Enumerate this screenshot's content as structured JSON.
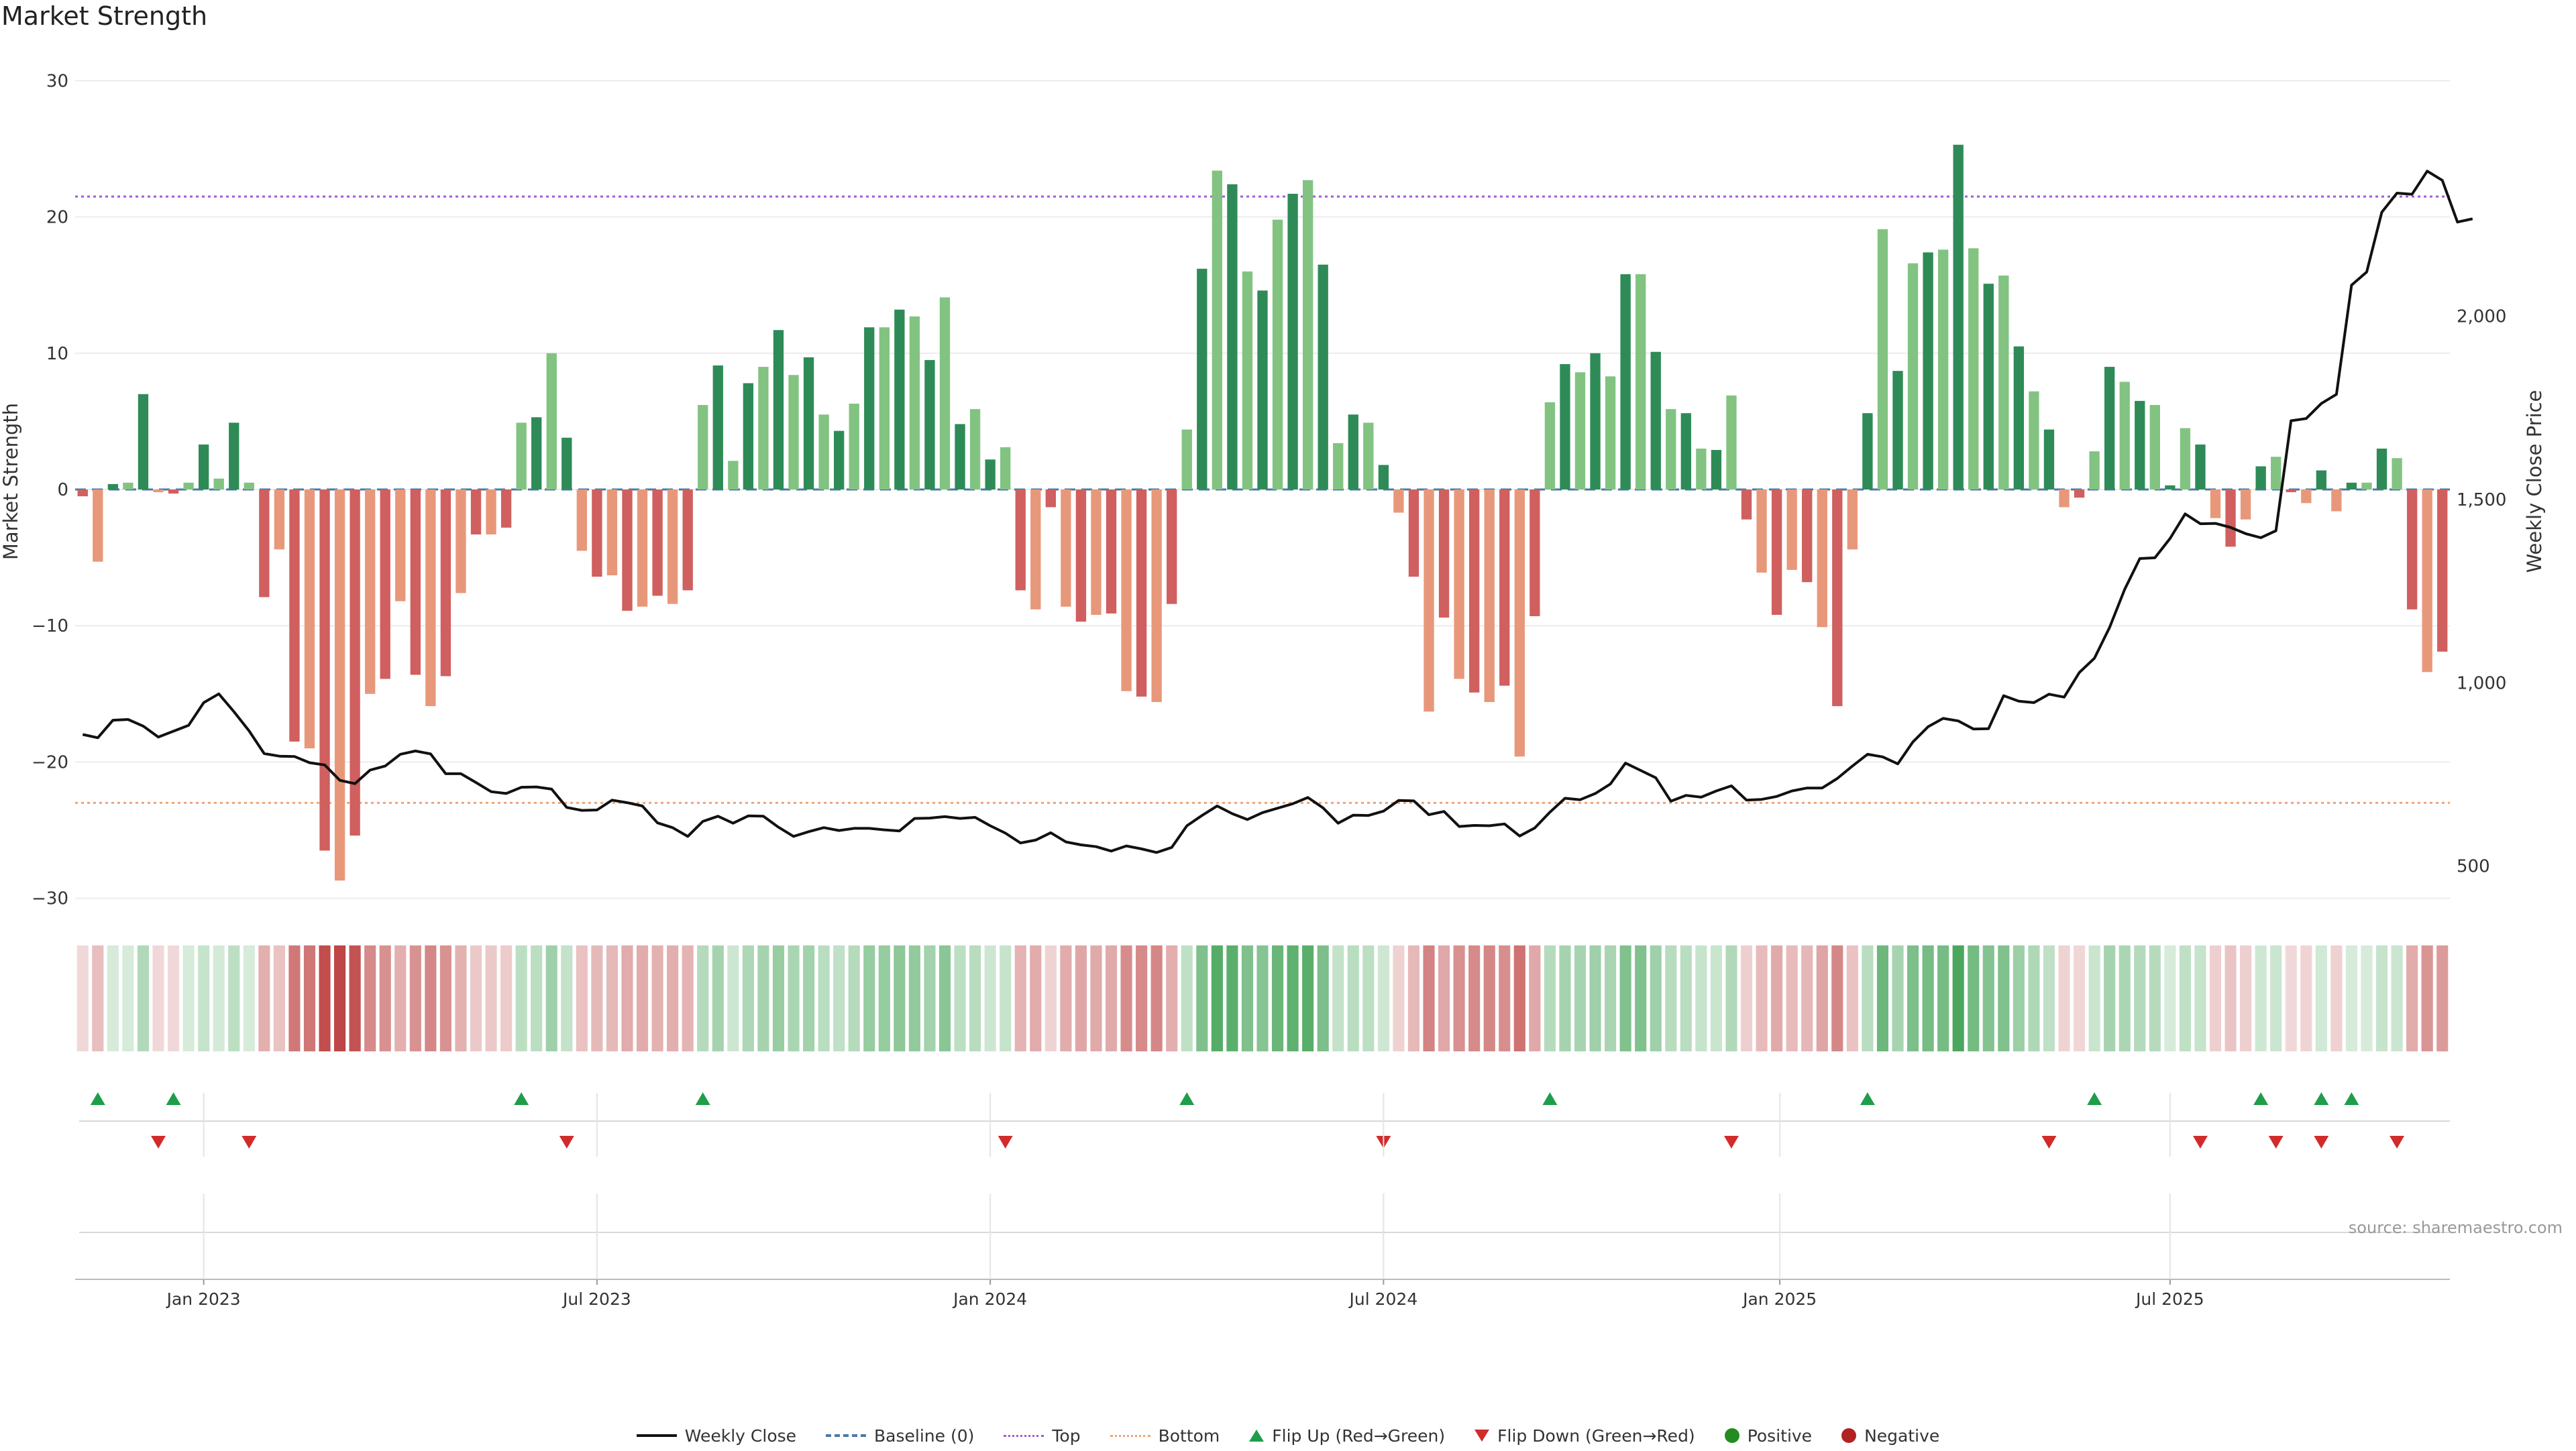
{
  "chart_data": {
    "type": "bar",
    "title": "Market Strength",
    "source": "source: sharemaestro.com",
    "ylabel_left": "Market Strength",
    "ylabel_right": "Weekly Close Price",
    "ylim_left": [
      -31,
      31
    ],
    "left_ticks": [
      "30",
      "20",
      "10",
      "0",
      "−10",
      "−20",
      "−30"
    ],
    "left_tick_values": [
      30,
      20,
      10,
      0,
      -10,
      -20,
      -30
    ],
    "ylim_right": [
      375,
      2680
    ],
    "right_ticks": [
      "2,000",
      "1,500",
      "1,000",
      "500"
    ],
    "right_tick_values": [
      2000,
      1500,
      1000,
      500
    ],
    "x_ticks": [
      "Jan 2023",
      "Jul 2023",
      "Jan 2024",
      "Jul 2024",
      "Jan 2025",
      "Jul 2025"
    ],
    "x_tick_weeks": [
      8.5,
      34.5,
      60.5,
      86.5,
      112.7,
      138.5
    ],
    "reference_lines": {
      "top": 21.5,
      "bottom": -23,
      "baseline": 0
    },
    "strength": [
      -0.5,
      -5.3,
      0.4,
      0.5,
      7,
      -0.2,
      -0.3,
      0.5,
      3.3,
      0.8,
      4.9,
      0.5,
      -7.9,
      -4.4,
      -18.5,
      -19,
      -26.5,
      -28.7,
      -25.4,
      -15,
      -13.9,
      -8.2,
      -13.6,
      -15.9,
      -13.7,
      -7.6,
      -3.3,
      -3.3,
      -2.8,
      4.9,
      5.3,
      10,
      3.8,
      -4.5,
      -6.4,
      -6.3,
      -8.9,
      -8.6,
      -7.8,
      -8.4,
      -7.4,
      6.2,
      9.1,
      2.1,
      7.8,
      9,
      11.7,
      8.4,
      9.7,
      5.5,
      4.3,
      6.3,
      11.9,
      11.9,
      13.2,
      12.7,
      9.5,
      14.1,
      4.8,
      5.9,
      2.2,
      3.1,
      -7.4,
      -8.8,
      -1.3,
      -8.6,
      -9.7,
      -9.2,
      -9.1,
      -14.8,
      -15.2,
      -15.6,
      -8.4,
      4.4,
      16.2,
      23.4,
      22.4,
      16,
      14.6,
      19.8,
      21.7,
      22.7,
      16.5,
      3.4,
      5.5,
      4.9,
      1.8,
      -1.7,
      -6.4,
      -16.3,
      -9.4,
      -13.9,
      -14.9,
      -15.6,
      -14.4,
      -19.6,
      -9.3,
      6.4,
      9.2,
      8.6,
      10,
      8.3,
      15.8,
      15.8,
      10.1,
      5.9,
      5.6,
      3,
      2.9,
      6.9,
      -2.2,
      -6.1,
      -9.2,
      -5.9,
      -6.8,
      -10.1,
      -15.9,
      -4.4,
      5.6,
      19.1,
      8.7,
      16.6,
      17.4,
      17.6,
      25.3,
      17.7,
      15.1,
      15.7,
      10.5,
      7.2,
      4.4,
      -1.3,
      -0.6,
      2.8,
      9,
      7.9,
      6.5,
      6.2,
      0.3,
      4.5,
      3.3,
      -2.1,
      -4.2,
      -2.2,
      1.7,
      2.4,
      -0.2,
      -1,
      1.4,
      -1.6,
      0.5,
      0.5,
      3,
      2.3,
      -8.8,
      -13.4,
      -11.9
    ],
    "weekly_close": [
      859,
      850,
      898,
      900,
      882,
      852,
      868,
      884,
      946,
      970,
      921,
      869,
      807,
      800,
      799,
      782,
      776,
      734,
      725,
      762,
      773,
      805,
      814,
      806,
      752,
      752,
      728,
      703,
      698,
      715,
      716,
      710,
      660,
      652,
      653,
      680,
      673,
      664,
      618,
      605,
      581,
      622,
      636,
      617,
      637,
      636,
      606,
      581,
      594,
      605,
      597,
      603,
      603,
      599,
      596,
      630,
      631,
      635,
      630,
      633,
      610,
      590,
      563,
      571,
      591,
      566,
      558,
      553,
      541,
      555,
      547,
      537,
      551,
      610,
      638,
      664,
      643,
      627,
      646,
      658,
      670,
      687,
      659,
      617,
      639,
      638,
      650,
      679,
      678,
      640,
      649,
      608,
      611,
      610,
      615,
      582,
      604,
      647,
      685,
      681,
      698,
      724,
      781,
      761,
      741,
      677,
      693,
      688,
      705,
      719,
      680,
      682,
      690,
      705,
      713,
      713,
      739,
      773,
      805,
      798,
      779,
      839,
      880,
      903,
      896,
      874,
      875,
      965,
      950,
      946,
      969,
      961,
      1028,
      1067,
      1151,
      1255,
      1339,
      1341,
      1394,
      1461,
      1434,
      1435,
      1424,
      1407,
      1396,
      1415,
      1715,
      1721,
      1762,
      1787,
      2085,
      2121,
      2284,
      2336,
      2333,
      2396,
      2371,
      2257,
      2266
    ],
    "flip_up_weeks": [
      1.5,
      6.5,
      29.5,
      41.5,
      73.5,
      97.5,
      118.5,
      133.5,
      144.5,
      148.5,
      150.5
    ],
    "flip_down_weeks": [
      5.5,
      11.5,
      32.5,
      61.5,
      86.5,
      109.5,
      130.5,
      140.5,
      145.5,
      148.5,
      153.5
    ],
    "positive_count": 81,
    "negative_count": 78
  },
  "legend": {
    "weekly_close": "Weekly Close",
    "baseline": "Baseline (0)",
    "top": "Top",
    "bottom": "Bottom",
    "flip_up": "Flip Up (Red→Green)",
    "flip_down": "Flip Down (Green→Red)",
    "positive": "Positive",
    "negative": "Negative"
  },
  "colors": {
    "strong_green": "#2e8b57",
    "light_green": "#82c382",
    "strong_red": "#d05f5f",
    "light_red": "#e8987a",
    "price_line": "#111111",
    "top_line": "#a25ad8",
    "bottom_line": "#f0a474",
    "baseline": "#4a78a8",
    "flip_up": "#1f9e4a",
    "flip_down": "#d12b2b",
    "positive_dot": "#228b22",
    "negative_dot": "#b22222"
  }
}
